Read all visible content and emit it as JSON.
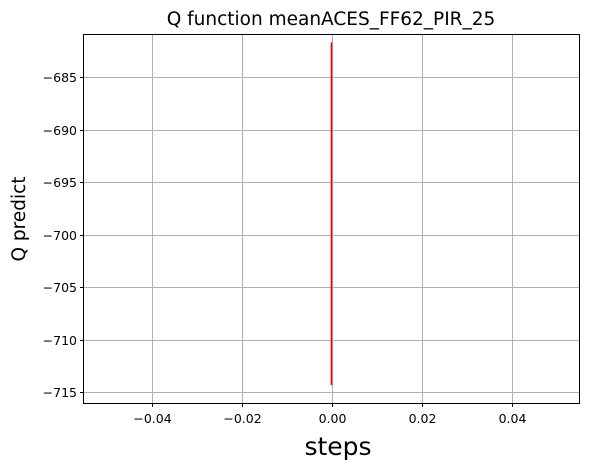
{
  "chart_data": {
    "type": "line",
    "title": "Q function meanACES_FF62_PIR_25",
    "xlabel": "steps",
    "ylabel": "Q predict",
    "xlim": [
      -0.055,
      0.055
    ],
    "ylim": [
      -716.0,
      -681.0
    ],
    "x_ticks": [
      -0.04,
      -0.02,
      0.0,
      0.02,
      0.04
    ],
    "x_tick_labels": [
      "−0.04",
      "−0.02",
      "0.00",
      "0.02",
      "0.04"
    ],
    "y_ticks": [
      -685,
      -690,
      -695,
      -700,
      -705,
      -710,
      -715
    ],
    "y_tick_labels": [
      "−685",
      "−690",
      "−695",
      "−700",
      "−705",
      "−710",
      "−715"
    ],
    "grid": true,
    "series": [
      {
        "name": "Q predict",
        "color": "#ff0000",
        "x": [
          0.0,
          0.0
        ],
        "y": [
          -714.3,
          -681.7
        ]
      }
    ]
  }
}
